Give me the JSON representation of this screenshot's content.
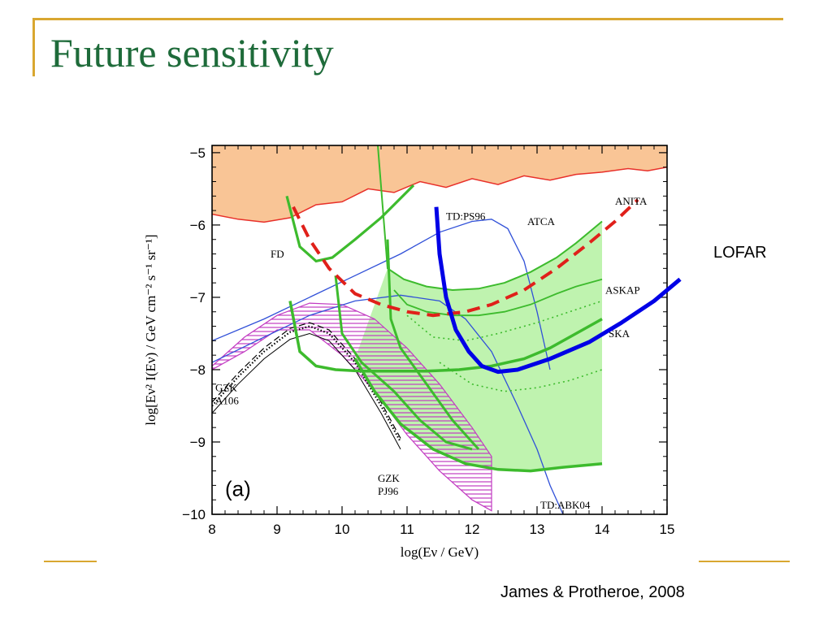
{
  "slide": {
    "title": "Future sensitivity",
    "credit": "James & Protheroe, 2008",
    "lofar_label": "LOFAR"
  },
  "chart_data": {
    "type": "line",
    "panel_label": "(a)",
    "xlabel": "log(Eν / GeV)",
    "ylabel": "log[Eν² I(Eν) / GeV cm⁻² s⁻¹ sr⁻¹]",
    "xlim": [
      8,
      15
    ],
    "ylim": [
      -10,
      -4.9
    ],
    "xticks": [
      "8",
      "9",
      "10",
      "11",
      "12",
      "13",
      "14",
      "15"
    ],
    "yticks": [
      "−5",
      "−6",
      "−7",
      "−8",
      "−9",
      "−10"
    ],
    "xtick_values": [
      8,
      9,
      10,
      11,
      12,
      13,
      14,
      15
    ],
    "ytick_values": [
      -5,
      -6,
      -7,
      -8,
      -9,
      -10
    ],
    "colors": {
      "excluded_fill": "#f9c596",
      "excluded_edge": "#e8302a",
      "anita": "#e0201a",
      "lofar": "#0000e6",
      "green": "#3dbb2d",
      "green_fill": "#b8f2a6",
      "blue": "#3050d8",
      "magenta": "#c23bc2",
      "gzk_a106": "#000000"
    },
    "annotations": [
      {
        "text": "FD",
        "x": 8.9,
        "y": -6.45
      },
      {
        "text": "TD:PS96",
        "x": 11.6,
        "y": -5.93
      },
      {
        "text": "ATCA",
        "x": 12.85,
        "y": -6.0
      },
      {
        "text": "ANITA",
        "x": 14.2,
        "y": -5.72
      },
      {
        "text": "ASKAP",
        "x": 14.05,
        "y": -6.95
      },
      {
        "text": "SKA",
        "x": 14.1,
        "y": -7.55
      },
      {
        "text": "GZK",
        "x": 8.05,
        "y": -8.3
      },
      {
        "text": "A106",
        "x": 8.05,
        "y": -8.48
      },
      {
        "text": "GZK",
        "x": 10.55,
        "y": -9.55
      },
      {
        "text": "PJ96",
        "x": 10.55,
        "y": -9.73
      },
      {
        "text": "TD:ABK04",
        "x": 13.05,
        "y": -9.92
      }
    ],
    "series": [
      {
        "name": "",
        "kind": "excluded-region",
        "x": [
          8.0,
          8.4,
          8.8,
          9.2,
          9.6,
          10.0,
          10.4,
          10.8,
          11.2,
          11.6,
          12.0,
          12.4,
          12.8,
          13.2,
          13.6,
          14.0,
          14.4,
          14.7,
          15.0
        ],
        "y": [
          -5.85,
          -5.92,
          -5.96,
          -5.9,
          -5.72,
          -5.68,
          -5.5,
          -5.55,
          -5.4,
          -5.48,
          -5.36,
          -5.44,
          -5.32,
          -5.38,
          -5.3,
          -5.27,
          -5.22,
          -5.25,
          -5.2
        ]
      },
      {
        "name": "ANITA",
        "kind": "dashed",
        "x": [
          9.25,
          9.5,
          9.8,
          10.2,
          10.6,
          11.0,
          11.4,
          11.9,
          12.3,
          12.8,
          13.3,
          13.8,
          14.2,
          14.55
        ],
        "y": [
          -5.75,
          -6.2,
          -6.6,
          -6.95,
          -7.1,
          -7.2,
          -7.25,
          -7.2,
          -7.1,
          -6.9,
          -6.6,
          -6.25,
          -5.95,
          -5.65
        ]
      },
      {
        "name": "LOFAR",
        "kind": "thick",
        "x": [
          11.45,
          11.5,
          11.6,
          11.75,
          11.95,
          12.15,
          12.4,
          12.7,
          13.2,
          13.8,
          14.3,
          14.8,
          15.2
        ],
        "y": [
          -5.75,
          -6.4,
          -7.0,
          -7.45,
          -7.75,
          -7.95,
          -8.03,
          -8.0,
          -7.85,
          -7.62,
          -7.35,
          -7.05,
          -6.75
        ]
      },
      {
        "name": "FD",
        "kind": "green",
        "x": [
          9.15,
          9.35,
          9.6,
          9.85,
          10.2,
          10.6,
          11.1
        ],
        "y": [
          -5.6,
          -6.3,
          -6.5,
          -6.45,
          -6.2,
          -5.9,
          -5.45
        ]
      },
      {
        "name": "",
        "kind": "green",
        "x": [
          9.2,
          9.35,
          9.6,
          9.9,
          10.3,
          10.8,
          11.3,
          11.8,
          12.3,
          12.8,
          13.2,
          13.6,
          14.0
        ],
        "y": [
          -7.05,
          -7.75,
          -7.95,
          -8.0,
          -8.02,
          -8.02,
          -8.02,
          -8.0,
          -7.95,
          -7.85,
          -7.7,
          -7.5,
          -7.3
        ]
      },
      {
        "name": "",
        "kind": "green",
        "x": [
          10.55,
          10.7,
          10.95,
          11.3,
          11.7,
          12.1,
          12.5,
          12.9,
          13.3,
          13.6,
          14.0
        ],
        "y": [
          -4.9,
          -6.6,
          -6.75,
          -6.85,
          -6.9,
          -6.88,
          -6.8,
          -6.65,
          -6.45,
          -6.25,
          -5.95
        ]
      },
      {
        "name": "",
        "kind": "green",
        "x": [
          10.8,
          11.0,
          11.3,
          11.7,
          12.1,
          12.5,
          12.9,
          13.3,
          13.6,
          14.0
        ],
        "y": [
          -6.9,
          -7.1,
          -7.2,
          -7.25,
          -7.25,
          -7.2,
          -7.1,
          -6.95,
          -6.85,
          -6.75
        ]
      },
      {
        "name": "",
        "kind": "green",
        "x": [
          10.2,
          10.5,
          10.9,
          11.4,
          11.9,
          12.4,
          12.9,
          13.4,
          14.0
        ],
        "y": [
          -7.85,
          -8.3,
          -8.75,
          -9.1,
          -9.3,
          -9.38,
          -9.4,
          -9.35,
          -9.3
        ]
      },
      {
        "name": "TD:PS96",
        "kind": "blue",
        "x": [
          8.0,
          8.8,
          9.5,
          10.2,
          10.9,
          11.5,
          12.0,
          12.3,
          12.55,
          12.8,
          13.0,
          13.1,
          13.2
        ],
        "y": [
          -7.6,
          -7.3,
          -7.0,
          -6.7,
          -6.4,
          -6.1,
          -5.95,
          -5.92,
          -6.05,
          -6.5,
          -7.2,
          -7.6,
          -8.0
        ]
      },
      {
        "name": "TD:ABK04",
        "kind": "blue",
        "x": [
          8.0,
          8.8,
          9.5,
          10.2,
          10.9,
          11.5,
          11.9,
          12.3,
          12.7,
          13.0,
          13.2,
          13.4
        ],
        "y": [
          -7.9,
          -7.55,
          -7.25,
          -7.05,
          -6.97,
          -7.05,
          -7.3,
          -7.75,
          -8.5,
          -9.1,
          -9.6,
          -10.0
        ]
      },
      {
        "name": "GZK PJ96",
        "kind": "magenta-band",
        "x": [
          8.0,
          8.5,
          9.0,
          9.5,
          10.0,
          10.5,
          11.0,
          11.5,
          12.0,
          12.3
        ],
        "upper": [
          -7.95,
          -7.55,
          -7.25,
          -7.08,
          -7.1,
          -7.3,
          -7.7,
          -8.2,
          -8.8,
          -9.2
        ],
        "lower": [
          -8.0,
          -7.75,
          -7.45,
          -7.45,
          -7.8,
          -8.3,
          -8.9,
          -9.4,
          -9.8,
          -9.95
        ]
      },
      {
        "name": "GZK A106",
        "kind": "black",
        "x": [
          8.0,
          8.4,
          8.8,
          9.2,
          9.5,
          9.8,
          10.2,
          10.6,
          10.9
        ],
        "y": [
          -8.6,
          -8.2,
          -7.85,
          -7.58,
          -7.5,
          -7.6,
          -8.0,
          -8.6,
          -9.1
        ]
      }
    ]
  }
}
